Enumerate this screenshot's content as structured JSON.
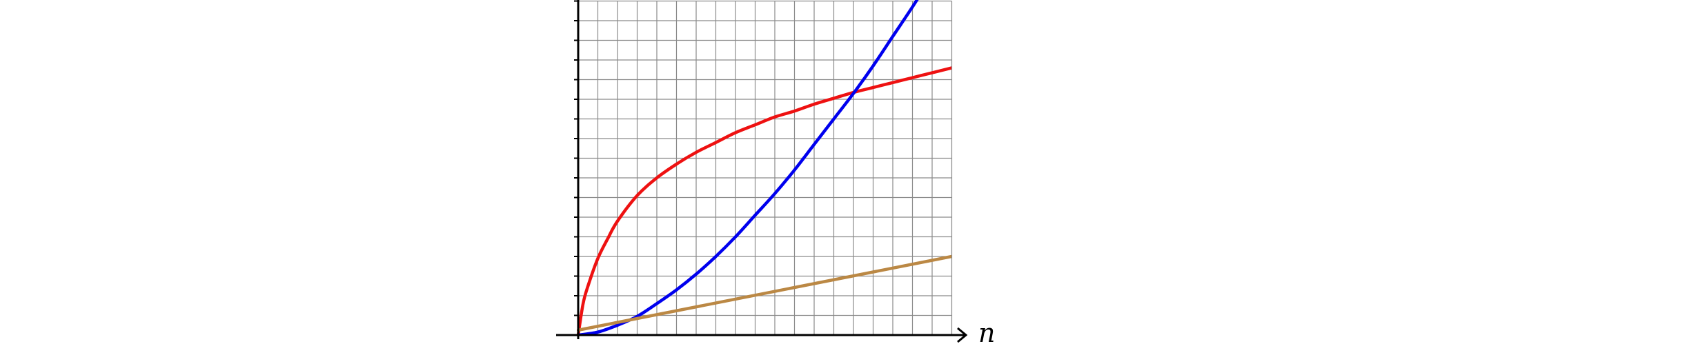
{
  "chart_data": {
    "type": "line",
    "title": "",
    "xlabel": "n",
    "ylabel": "",
    "xlim": [
      0,
      19
    ],
    "ylim": [
      0,
      17
    ],
    "grid": true,
    "grid_step": 1,
    "legend": "none",
    "series": [
      {
        "color": "#ee1111",
        "x": [
          0,
          0.25,
          0.5,
          1,
          1.5,
          2,
          3,
          4,
          5,
          6,
          7,
          8,
          9,
          10,
          11,
          12,
          13,
          14,
          15,
          16,
          17,
          18,
          19
        ],
        "y": [
          0,
          1.6,
          2.5,
          3.9,
          4.9,
          5.8,
          7.1,
          8.0,
          8.7,
          9.3,
          9.8,
          10.3,
          10.7,
          11.1,
          11.4,
          11.75,
          12.05,
          12.35,
          12.6,
          12.85,
          13.1,
          13.35,
          13.6
        ]
      },
      {
        "color": "#0000ee",
        "x": [
          0,
          1,
          2,
          3,
          4,
          5,
          6,
          7,
          8,
          9,
          10,
          11,
          12,
          13,
          14,
          15,
          16,
          17,
          17.5
        ],
        "y": [
          0,
          0.15,
          0.5,
          0.95,
          1.6,
          2.3,
          3.1,
          4.0,
          5.0,
          6.1,
          7.2,
          8.4,
          9.7,
          11.0,
          12.3,
          13.7,
          15.2,
          16.7,
          17.5
        ]
      },
      {
        "color": "#bb8844",
        "x": [
          0,
          19
        ],
        "y": [
          0.25,
          4.0
        ]
      }
    ]
  }
}
